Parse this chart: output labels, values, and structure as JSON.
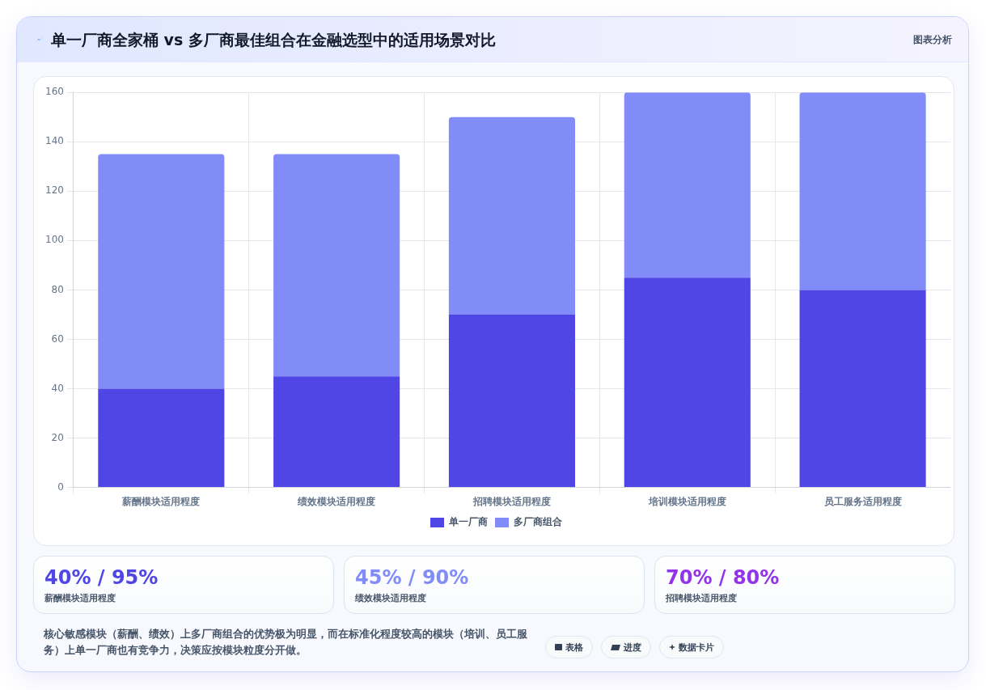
{
  "chart_data": [
    {
      "type": "bar",
      "title": "单一厂商全家桶 vs 多厂商最佳组合在金融选型中的适用场景对比",
      "categories": [
        "薪酬模块适用程度",
        "绩效模块适用程度",
        "招聘模块适用程度",
        "培训模块适用程度",
        "员工服务适用程度"
      ],
      "series": [
        {
          "name": "单一厂商",
          "color": "#4f46e5",
          "values": [
            40,
            45,
            70,
            85,
            80
          ]
        },
        {
          "name": "多厂商组合",
          "color": "#818cf8",
          "values": [
            95,
            90,
            80,
            75,
            80
          ]
        }
      ],
      "stacked": true,
      "ylim": [
        0,
        160
      ],
      "yticks": [
        0,
        20,
        40,
        60,
        80,
        100,
        120,
        140,
        160
      ],
      "grid": true,
      "legend": "bottom",
      "annotations": [
        "图表分析",
        "核心敏感模块（薪酬、绩效）上多厂商组合的优势极为明显，而在标准化程度较高的模块（培训、员工服务）上单一厂商也有竞争力，决策应按模块粒度分开做。",
        "表格",
        "进度",
        "数据卡片"
      ]
    },
    {
      "type": "other",
      "title": "40% / 95%",
      "subtitle": "薪酬模块适用程度",
      "color": "#4f46e5"
    },
    {
      "type": "other",
      "title": "45% / 90%",
      "subtitle": "绩效模块适用程度",
      "color": "#818cf8"
    },
    {
      "type": "other",
      "title": "70% / 80%",
      "subtitle": "招聘模块适用程度",
      "color": "#9333ea"
    }
  ]
}
